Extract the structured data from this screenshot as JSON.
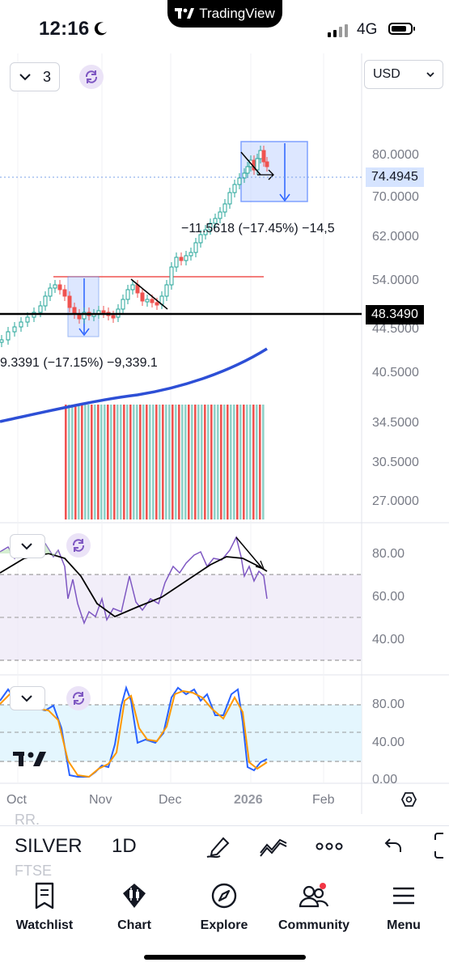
{
  "status_bar": {
    "time": "12:16",
    "network": "4G"
  },
  "app_pill": {
    "brand": "TradingView"
  },
  "chart_header": {
    "dropdown_value": "3",
    "currency": "USD"
  },
  "price_axis": {
    "labels": [
      "80.0000",
      "70.0000",
      "62.0000",
      "54.0000",
      "40.5000",
      "34.5000",
      "30.5000",
      "27.0000"
    ],
    "current_price": "74.4945",
    "line_price": "48.3490",
    "partial_label": "44.5000"
  },
  "annotations": {
    "upper_measure": "−11.5618 (−17.45%) −14,5",
    "lower_measure": "9.3391 (−17.15%) −9,339.1"
  },
  "rsi_axis": {
    "labels": [
      "80.00",
      "60.00",
      "40.00"
    ]
  },
  "stoch_axis": {
    "labels": [
      "80.00",
      "40.00",
      "0.00"
    ]
  },
  "time_axis": {
    "labels": [
      "Oct",
      "Nov",
      "Dec",
      "2026",
      "Feb"
    ]
  },
  "toolbar": {
    "symbol": "SILVER",
    "interval": "1D",
    "under_symbol_top": "RR.",
    "under_symbol_bottom": "FTSE"
  },
  "tabs": [
    {
      "label": "Watchlist",
      "icon": "watchlist-icon"
    },
    {
      "label": "Chart",
      "icon": "chart-icon"
    },
    {
      "label": "Explore",
      "icon": "compass-icon"
    },
    {
      "label": "Community",
      "icon": "community-icon"
    },
    {
      "label": "Menu",
      "icon": "menu-icon"
    }
  ],
  "colors": {
    "accent_blue": "#2962ff",
    "up_green": "#26a69a",
    "down_red": "#ef5350",
    "rsi_purple": "#7e57c2",
    "stoch_orange": "#ff9800",
    "current_price_bg": "#d6e4ff"
  }
}
